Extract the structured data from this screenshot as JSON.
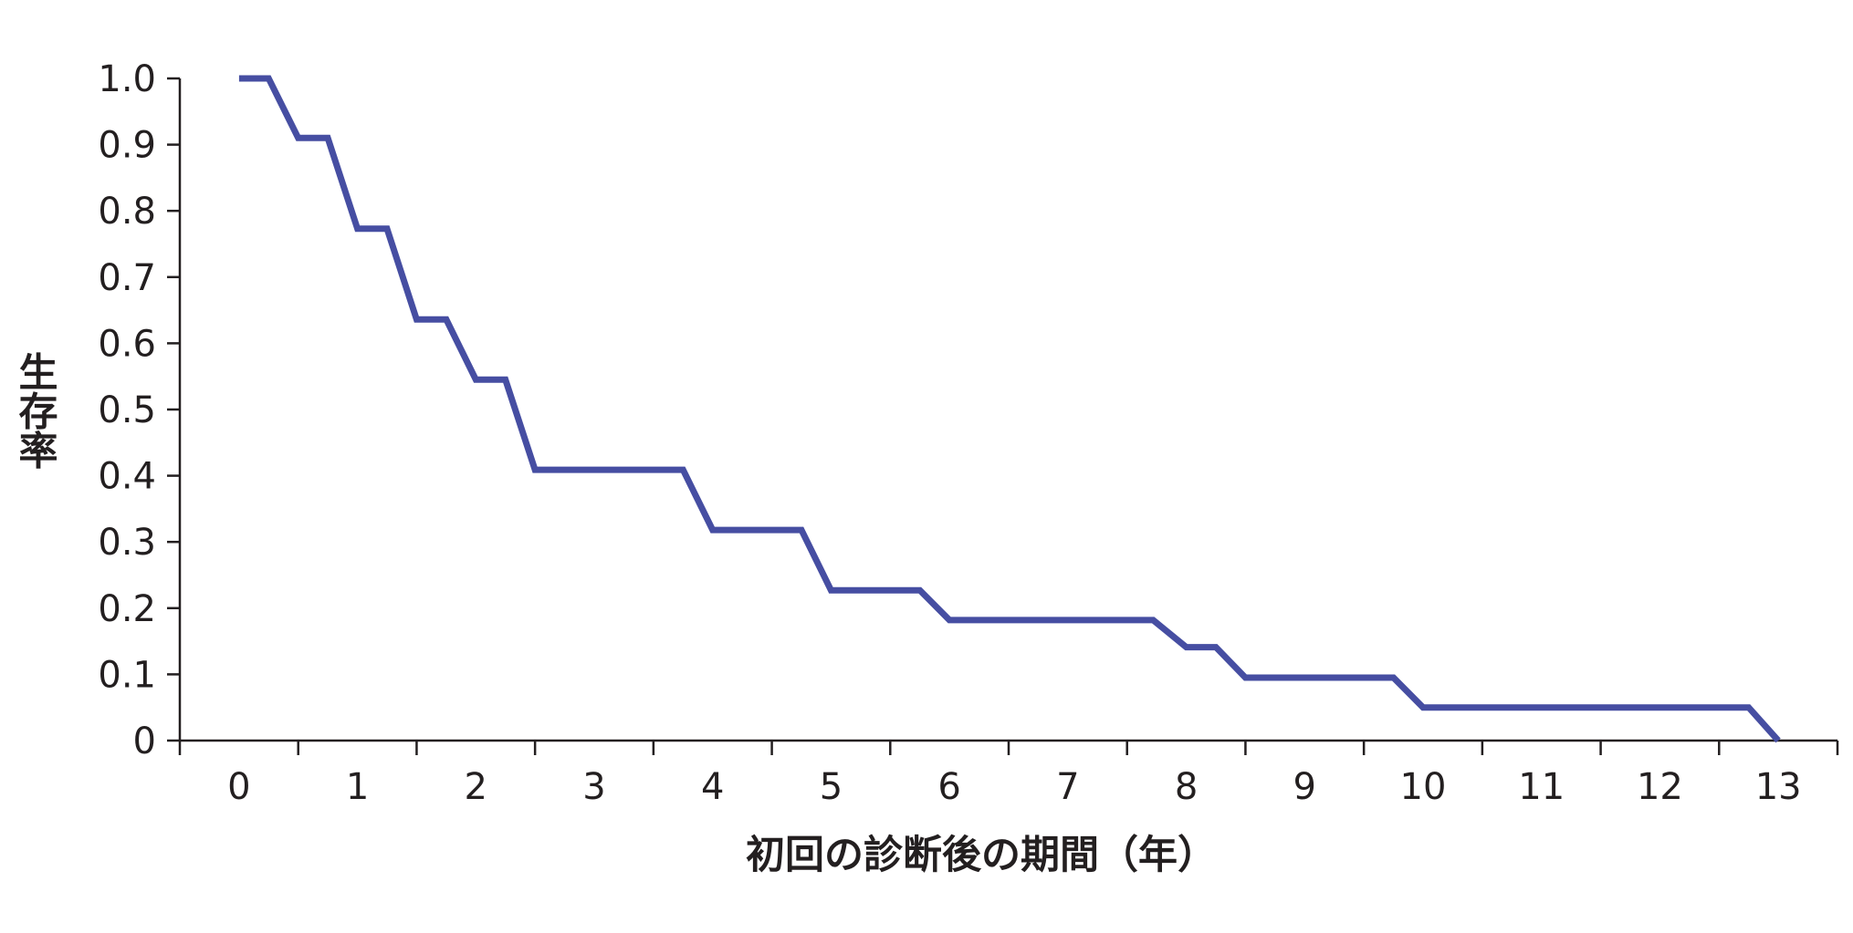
{
  "chart_data": {
    "type": "line",
    "step": true,
    "title": "",
    "xlabel": "初回の診断後の期間（年）",
    "ylabel": "生存率",
    "xlim": [
      -0.5,
      13.5
    ],
    "ylim": [
      0,
      1.0
    ],
    "x_ticks": [
      0,
      1,
      2,
      3,
      4,
      5,
      6,
      7,
      8,
      9,
      10,
      11,
      12,
      13
    ],
    "x_tick_labels": [
      "0",
      "1",
      "2",
      "3",
      "4",
      "5",
      "6",
      "7",
      "8",
      "9",
      "10",
      "11",
      "12",
      "13"
    ],
    "y_ticks": [
      0,
      0.1,
      0.2,
      0.3,
      0.4,
      0.5,
      0.6,
      0.7,
      0.8,
      0.9,
      1.0
    ],
    "y_tick_labels": [
      "0",
      "0.1",
      "0.2",
      "0.3",
      "0.4",
      "0.5",
      "0.6",
      "0.7",
      "0.8",
      "0.9",
      "1.0"
    ],
    "grid": false,
    "legend": "none",
    "series": [
      {
        "color": "#464ea2",
        "x": [
          0,
          0.25,
          0.5,
          0.75,
          1.0,
          1.25,
          1.5,
          1.75,
          2.0,
          2.25,
          2.5,
          3.75,
          4.0,
          4.75,
          5.0,
          5.75,
          6.0,
          7.72,
          8.0,
          8.25,
          8.5,
          9.75,
          10.0,
          12.75,
          13.0
        ],
        "y": [
          1.0,
          1.0,
          0.91,
          0.91,
          0.773,
          0.773,
          0.636,
          0.636,
          0.545,
          0.545,
          0.409,
          0.409,
          0.318,
          0.318,
          0.227,
          0.227,
          0.182,
          0.182,
          0.141,
          0.141,
          0.095,
          0.095,
          0.05,
          0.05,
          0.0
        ]
      }
    ]
  }
}
